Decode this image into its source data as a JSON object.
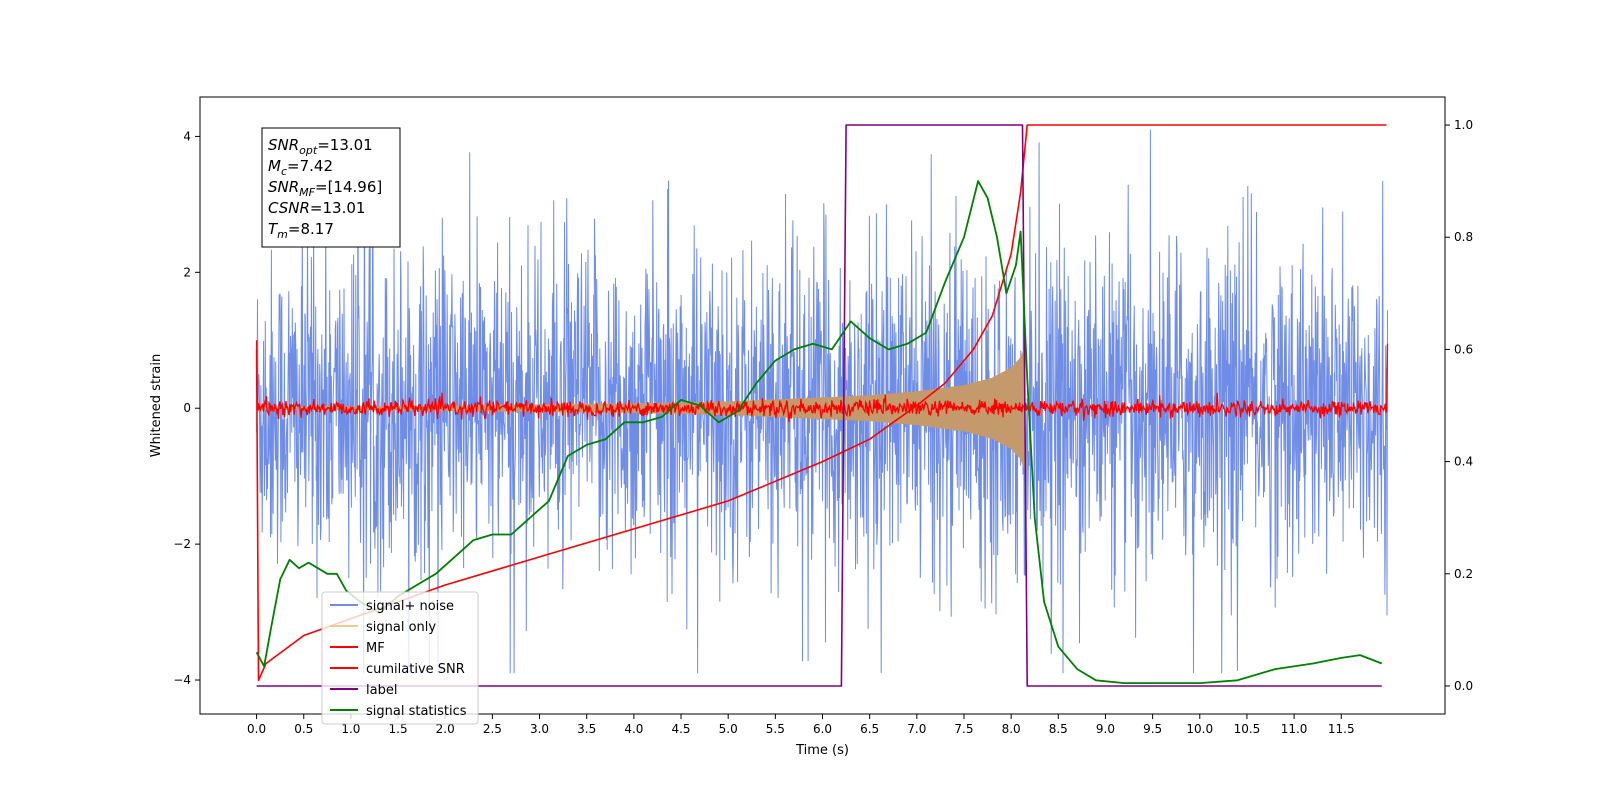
{
  "chart_data": {
    "type": "line",
    "xlabel": "Time (s)",
    "ylabel_left": "Whitened strain",
    "ylabel_right": "",
    "xlim": [
      -0.6,
      12.6
    ],
    "ylim_left": [
      -4.5,
      4.58
    ],
    "ylim_right": [
      -0.05,
      1.05
    ],
    "x_ticks": [
      "0.0",
      "0.5",
      "1.0",
      "1.5",
      "2.0",
      "2.5",
      "3.0",
      "3.5",
      "4.0",
      "4.5",
      "5.0",
      "5.5",
      "6.0",
      "6.5",
      "7.0",
      "7.5",
      "8.0",
      "8.5",
      "9.0",
      "9.5",
      "10.0",
      "10.5",
      "11.0",
      "11.5"
    ],
    "y_ticks_left": [
      -4,
      -2,
      0,
      2,
      4
    ],
    "y_ticks_right": [
      0.0,
      0.2,
      0.4,
      0.6,
      0.8,
      1.0
    ],
    "grid": false,
    "legend_position": "lower-left",
    "annotation": {
      "lines": [
        {
          "base": "SNR",
          "sub": "opt",
          "value": "=13.01"
        },
        {
          "base": "M",
          "sub": "c",
          "value": "=7.42"
        },
        {
          "base": "SNR",
          "sub": "MF",
          "value": "=[14.96]"
        },
        {
          "base": "CSNR",
          "sub": "",
          "value": "=13.01"
        },
        {
          "base": "T",
          "sub": "m",
          "value": "=8.17"
        }
      ]
    },
    "series": [
      {
        "name": "signal+ noise",
        "axis": "left",
        "color": "#6f8de6",
        "style": "dense noise approx ±1.3 std, spikes to ±4"
      },
      {
        "name": "signal only",
        "axis": "left",
        "color": "#f5b94f",
        "style": "chirp envelope growing to ±0.95 at 8.15 s",
        "envelope": {
          "x": [
            0,
            2,
            4,
            5,
            6,
            6.5,
            7,
            7.5,
            7.8,
            8.0,
            8.1,
            8.15
          ],
          "amp": [
            0.02,
            0.04,
            0.07,
            0.1,
            0.16,
            0.19,
            0.25,
            0.34,
            0.45,
            0.6,
            0.75,
            0.95
          ]
        }
      },
      {
        "name": "MF",
        "axis": "left",
        "color": "#ff0000",
        "style": "noise around 0 with amplitude ~0.1"
      },
      {
        "name": "cumilative SNR",
        "axis": "right",
        "color": "#ff0000",
        "x": [
          0,
          0.02,
          0.1,
          0.5,
          1,
          2,
          3,
          4,
          5,
          6,
          6.5,
          7,
          7.3,
          7.6,
          7.8,
          8.0,
          8.1,
          8.17,
          8.2,
          11.98
        ],
        "y": [
          0.6,
          0.01,
          0.04,
          0.09,
          0.12,
          0.18,
          0.23,
          0.28,
          0.33,
          0.4,
          0.44,
          0.5,
          0.54,
          0.6,
          0.66,
          0.77,
          0.88,
          1.0,
          1.0,
          1.0
        ]
      },
      {
        "name": "label",
        "axis": "right",
        "color": "#800080",
        "x": [
          0,
          6.2,
          6.25,
          8.12,
          8.17,
          11.93
        ],
        "y": [
          0,
          0,
          1,
          1,
          0,
          0
        ]
      },
      {
        "name": "signal statistics",
        "axis": "right",
        "color": "#008000",
        "x": [
          0,
          0.08,
          0.15,
          0.25,
          0.35,
          0.45,
          0.55,
          0.65,
          0.75,
          0.85,
          0.95,
          1.1,
          1.3,
          1.5,
          1.7,
          1.9,
          2.1,
          2.3,
          2.5,
          2.7,
          2.9,
          3.1,
          3.3,
          3.5,
          3.7,
          3.9,
          4.1,
          4.3,
          4.5,
          4.7,
          4.9,
          5.1,
          5.3,
          5.5,
          5.7,
          5.9,
          6.1,
          6.3,
          6.5,
          6.7,
          6.9,
          7.1,
          7.3,
          7.5,
          7.65,
          7.75,
          7.85,
          7.95,
          8.05,
          8.1,
          8.17,
          8.25,
          8.35,
          8.5,
          8.7,
          8.9,
          9.2,
          9.6,
          10.0,
          10.4,
          10.8,
          11.2,
          11.5,
          11.7,
          11.93
        ],
        "y": [
          0.06,
          0.035,
          0.1,
          0.19,
          0.225,
          0.21,
          0.22,
          0.21,
          0.2,
          0.2,
          0.17,
          0.15,
          0.13,
          0.16,
          0.18,
          0.2,
          0.23,
          0.26,
          0.27,
          0.27,
          0.3,
          0.33,
          0.41,
          0.43,
          0.44,
          0.47,
          0.47,
          0.48,
          0.51,
          0.5,
          0.47,
          0.49,
          0.54,
          0.58,
          0.6,
          0.61,
          0.6,
          0.65,
          0.62,
          0.6,
          0.61,
          0.63,
          0.72,
          0.8,
          0.9,
          0.87,
          0.8,
          0.7,
          0.75,
          0.81,
          0.55,
          0.3,
          0.15,
          0.07,
          0.03,
          0.01,
          0.005,
          0.005,
          0.005,
          0.01,
          0.03,
          0.04,
          0.05,
          0.055,
          0.04
        ]
      }
    ]
  }
}
